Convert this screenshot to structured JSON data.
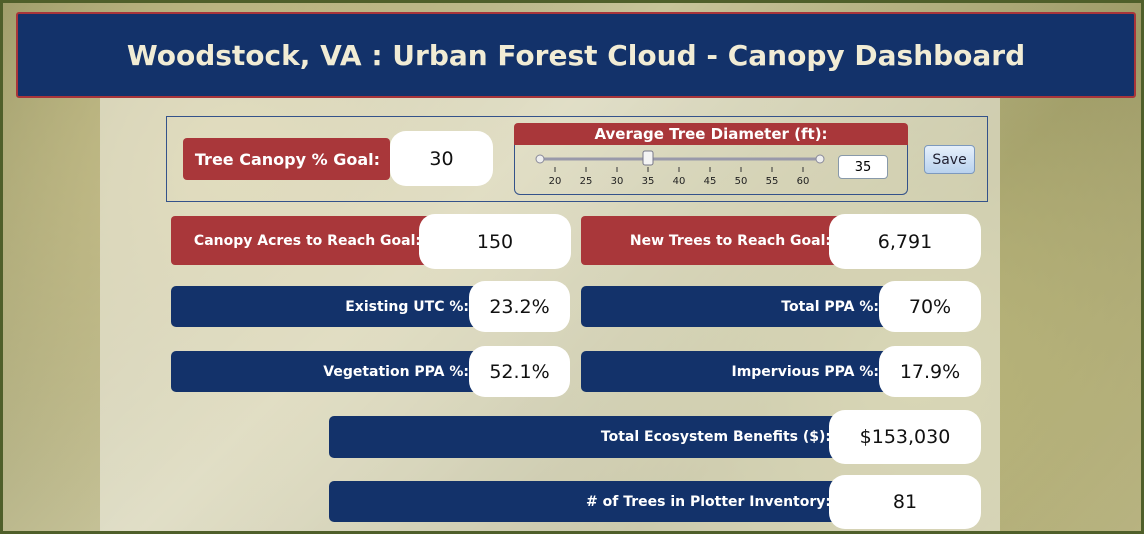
{
  "header": {
    "title": "Woodstock, VA : Urban Forest Cloud - Canopy Dashboard"
  },
  "controls": {
    "goal_label": "Tree Canopy % Goal:",
    "goal_value": "30",
    "diameter_label": "Average Tree Diameter (ft):",
    "slider_ticks": [
      20,
      25,
      30,
      35,
      40,
      45,
      50,
      55,
      60
    ],
    "slider_value": 35,
    "save": "Save"
  },
  "metrics": [
    {
      "label": "Canopy Acres to Reach Goal:",
      "value": "150"
    },
    {
      "label": "New Trees to Reach Goal:",
      "value": "6,791"
    },
    {
      "label": "Existing UTC %:",
      "value": "23.2%"
    },
    {
      "label": "Total PPA %:",
      "value": "70%"
    },
    {
      "label": "Vegetation PPA %:",
      "value": "52.1%"
    },
    {
      "label": "Impervious PPA %:",
      "value": "17.9%"
    },
    {
      "label": "Total Ecosystem Benefits ($):",
      "value": "$153,030"
    },
    {
      "label": "# of Trees in Plotter Inventory:",
      "value": "81"
    }
  ]
}
